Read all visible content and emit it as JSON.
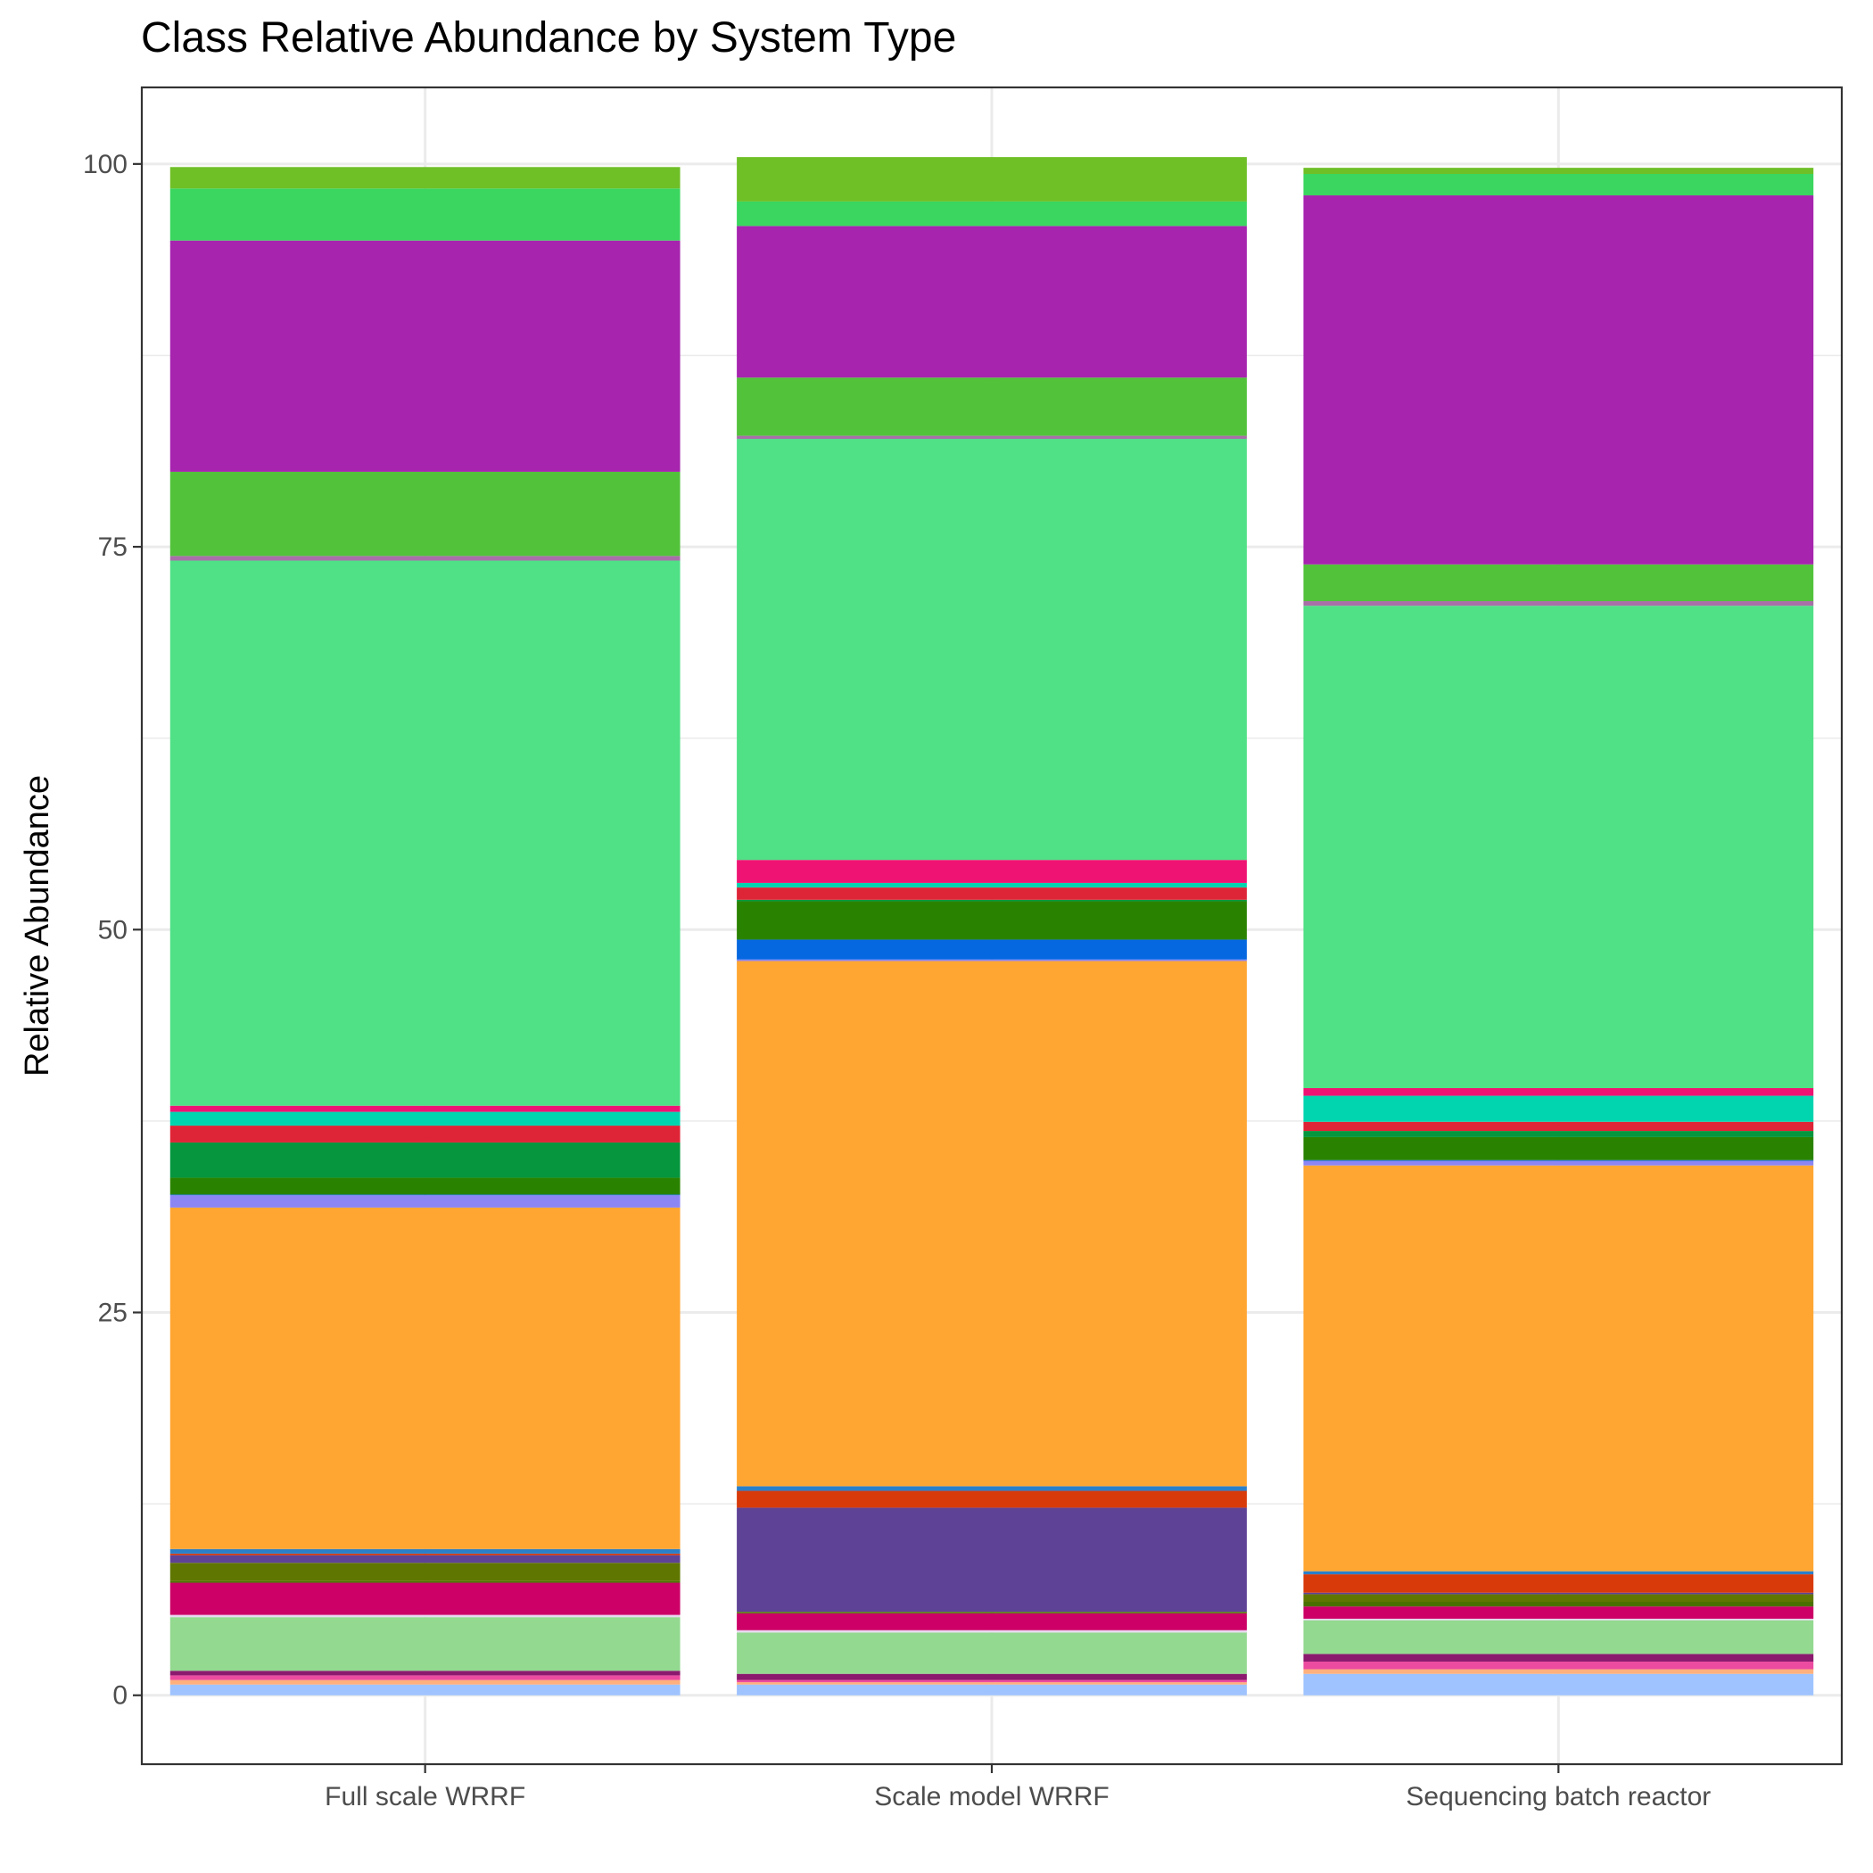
{
  "chart_data": {
    "type": "bar",
    "stacked": true,
    "title": "Class Relative Abundance by System Type",
    "xlabel": "",
    "ylabel": "Relative Abundance",
    "ylim": [
      -4.5,
      105
    ],
    "yticks": [
      0,
      25,
      50,
      75,
      100
    ],
    "y_minor_gridlines": [
      12.5,
      37.5,
      62.5,
      87.5
    ],
    "grid": true,
    "legend": "none",
    "categories": [
      "Full scale WRRF",
      "Scale model WRRF",
      "Sequencing batch reactor"
    ],
    "series": [
      {
        "color": "#9ec3ff",
        "values": [
          0.7,
          0.7,
          1.4
        ]
      },
      {
        "color": "#ffb07c",
        "values": [
          0.3,
          0.15,
          0.3
        ]
      },
      {
        "color": "#ec4ba0",
        "values": [
          0.3,
          0.15,
          0.5
        ]
      },
      {
        "color": "#8b1a6e",
        "values": [
          0.3,
          0.4,
          0.5
        ]
      },
      {
        "color": "#93d990",
        "values": [
          3.5,
          2.7,
          2.2
        ]
      },
      {
        "color": "#e8d9f0",
        "values": [
          0.15,
          0.15,
          0.1
        ]
      },
      {
        "color": "#cc0066",
        "values": [
          2.1,
          1.1,
          0.8
        ]
      },
      {
        "color": "#4a7000",
        "values": [
          0.1,
          0.05,
          0.3
        ]
      },
      {
        "color": "#5f7600",
        "values": [
          1.2,
          0.05,
          0.5
        ]
      },
      {
        "color": "#5e4296",
        "values": [
          0.5,
          6.8,
          0.1
        ]
      },
      {
        "color": "#d83a0a",
        "values": [
          0.1,
          1.1,
          1.2
        ]
      },
      {
        "color": "#2b7fc9",
        "values": [
          0.3,
          0.3,
          0.2
        ]
      },
      {
        "color": "#ffa632",
        "values": [
          22.3,
          34.3,
          26.5
        ]
      },
      {
        "color": "#8c86f5",
        "values": [
          0.8,
          0.1,
          0.3
        ]
      },
      {
        "color": "#0568e0",
        "values": [
          0.05,
          1.3,
          0.05
        ]
      },
      {
        "color": "#2a8300",
        "values": [
          1.1,
          2.5,
          1.5
        ]
      },
      {
        "color": "#05963e",
        "values": [
          2.3,
          0.1,
          0.4
        ]
      },
      {
        "color": "#de2537",
        "values": [
          1.1,
          0.8,
          0.6
        ]
      },
      {
        "color": "#00d5b0",
        "values": [
          0.9,
          0.3,
          1.7
        ]
      },
      {
        "color": "#ef1473",
        "values": [
          0.4,
          1.5,
          0.5
        ]
      },
      {
        "color": "#50e086",
        "values": [
          35.6,
          27.5,
          31.5
        ]
      },
      {
        "color": "#a86fa8",
        "values": [
          0.3,
          0.2,
          0.3
        ]
      },
      {
        "color": "#52c23b",
        "values": [
          5.5,
          3.8,
          2.4
        ]
      },
      {
        "color": "#a624ae",
        "values": [
          15.1,
          9.9,
          24.1
        ]
      },
      {
        "color": "#3ad65f",
        "values": [
          3.4,
          1.6,
          1.4
        ]
      },
      {
        "color": "#6fbf27",
        "values": [
          1.4,
          2.9,
          0.4
        ]
      }
    ]
  }
}
